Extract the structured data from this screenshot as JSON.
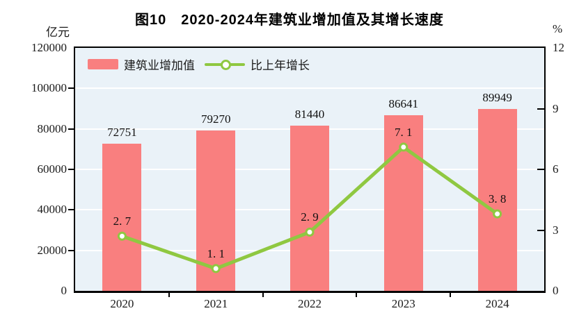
{
  "title": "图10　2020-2024年建筑业增加值及其增长速度",
  "left_axis_unit": "亿元",
  "right_axis_unit": "%",
  "legend": {
    "bar_label": "建筑业增加值",
    "line_label": "比上年增长"
  },
  "colors": {
    "bar": "#f97f7f",
    "line": "#8fc841",
    "marker_fill": "#ffffff",
    "plot_background": "#eaf2f8",
    "gridline": "#ffffff",
    "axis": "#000000",
    "text": "#1a1a1a"
  },
  "chart_data": {
    "type": "combo (bar + line)",
    "title": "图10　2020-2024年建筑业增加值及其增长速度",
    "categories": [
      "2020",
      "2021",
      "2022",
      "2023",
      "2024"
    ],
    "series": [
      {
        "name": "建筑业增加值",
        "type": "bar",
        "axis": "left",
        "unit": "亿元",
        "values": [
          72751,
          79270,
          81440,
          86641,
          89949
        ],
        "data_labels": [
          "72751",
          "79270",
          "81440",
          "86641",
          "89949"
        ]
      },
      {
        "name": "比上年增长",
        "type": "line",
        "axis": "right",
        "unit": "%",
        "values": [
          2.7,
          1.1,
          2.9,
          7.1,
          3.8
        ],
        "data_labels": [
          "2. 7",
          "1. 1",
          "2. 9",
          "7. 1",
          "3. 8"
        ]
      }
    ],
    "left_axis": {
      "title": "亿元",
      "min": 0,
      "max": 120000,
      "tick_step": 20000,
      "tick_labels": [
        "0",
        "20000",
        "40000",
        "60000",
        "80000",
        "100000",
        "120000"
      ]
    },
    "right_axis": {
      "title": "%",
      "min": 0,
      "max": 12,
      "tick_step": 3,
      "tick_labels": [
        "0",
        "3",
        "6",
        "9",
        "12"
      ]
    },
    "grid": "horizontal white gridlines at every 20000 of left axis",
    "legend_position": "top-left inside plot area"
  }
}
